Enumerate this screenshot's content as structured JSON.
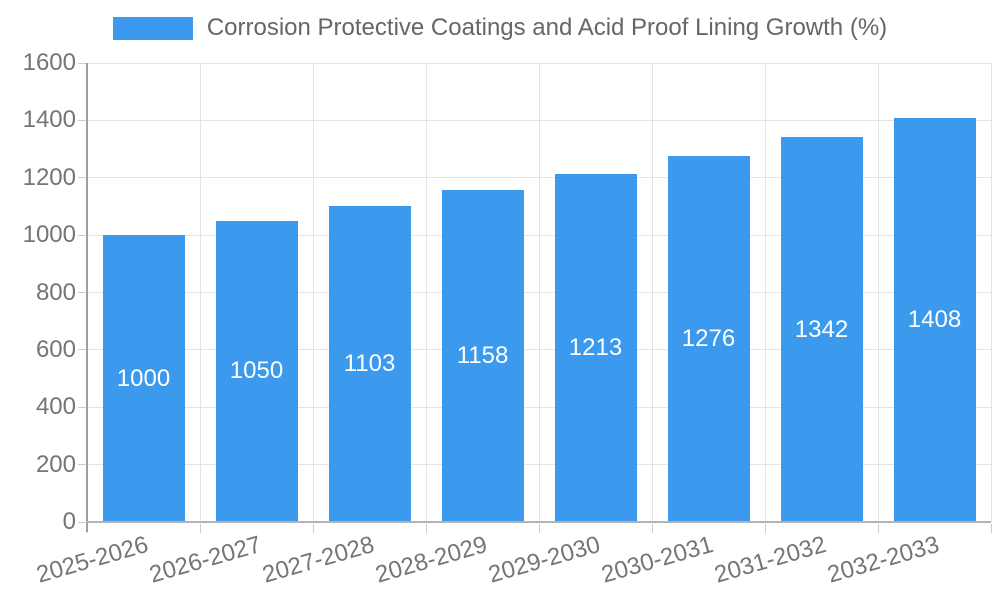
{
  "chart_data": {
    "type": "bar",
    "legend": "Corrosion Protective Coatings and Acid Proof Lining Growth (%)",
    "legend_position": "top-center",
    "categories": [
      "2025-2026",
      "2026-2027",
      "2027-2028",
      "2028-2029",
      "2029-2030",
      "2030-2031",
      "2031-2032",
      "2032-2033"
    ],
    "series": [
      {
        "name": "Corrosion Protective Coatings and Acid Proof Lining Growth (%)",
        "values": [
          1000,
          1050,
          1103,
          1158,
          1213,
          1276,
          1342,
          1408
        ]
      }
    ],
    "value_labels": [
      "1000",
      "1050",
      "1103",
      "1158",
      "1213",
      "1276",
      "1342",
      "1408"
    ],
    "xlabel": "",
    "ylabel": "",
    "ylim": [
      0,
      1600
    ],
    "ytick_step": 200,
    "ytick_labels": [
      "0",
      "200",
      "400",
      "600",
      "800",
      "1000",
      "1200",
      "1400",
      "1600"
    ],
    "grid": true,
    "colors": {
      "bar": "#3B99EE",
      "grid": "#E4E4E4",
      "tick_mark": "#CCCCCC",
      "y_axis": "#9E9E9E",
      "x_axis": "#B3B3B3",
      "tick_text": "#757575",
      "legend_text": "#666666",
      "value_text": "#FFFFFF",
      "background": "#FFFFFF"
    }
  }
}
